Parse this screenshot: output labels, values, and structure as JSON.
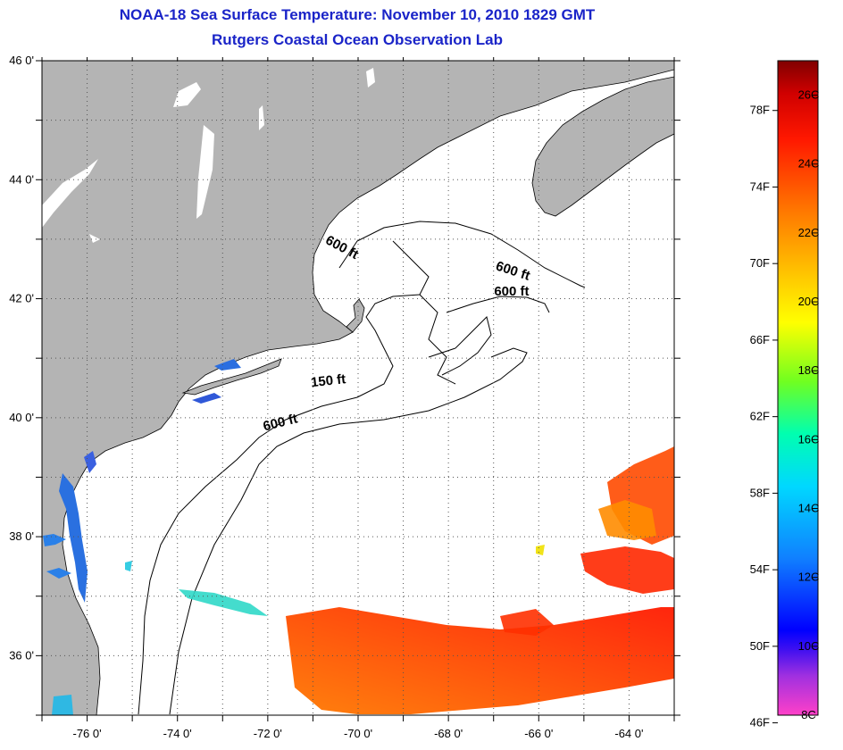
{
  "title": {
    "line1": "NOAA-18 Sea Surface Temperature:  November 10, 2010 1829 GMT",
    "line2": "Rutgers Coastal Ocean Observation Lab"
  },
  "map": {
    "lon_range": [
      -77,
      -63
    ],
    "lat_range": [
      35,
      46
    ],
    "lon_ticks": [
      {
        "value": -76,
        "label": "-76 0'"
      },
      {
        "value": -74,
        "label": "-74 0'"
      },
      {
        "value": -72,
        "label": "-72 0'"
      },
      {
        "value": -70,
        "label": "-70 0'"
      },
      {
        "value": -68,
        "label": "-68 0'"
      },
      {
        "value": -66,
        "label": "-66 0'"
      },
      {
        "value": -64,
        "label": "-64 0'"
      }
    ],
    "lat_ticks": [
      {
        "value": 46,
        "label": "46 0'"
      },
      {
        "value": 44,
        "label": "44 0'"
      },
      {
        "value": 42,
        "label": "42 0'"
      },
      {
        "value": 40,
        "label": "40 0'"
      },
      {
        "value": 38,
        "label": "38 0'"
      },
      {
        "value": 36,
        "label": "36 0'"
      }
    ],
    "contour_labels": [
      {
        "text": "600 ft",
        "lon": -70.4,
        "lat": 42.8,
        "rotate": 28
      },
      {
        "text": "600 ft",
        "lon": -66.6,
        "lat": 42.4,
        "rotate": 18
      },
      {
        "text": "600 ft",
        "lon": -66.6,
        "lat": 42.05,
        "rotate": 0
      },
      {
        "text": "150 ft",
        "lon": -70.65,
        "lat": 40.55,
        "rotate": -6
      },
      {
        "text": "600 ft",
        "lon": -71.7,
        "lat": 39.85,
        "rotate": -14
      }
    ],
    "colors": {
      "land": "#b4b4b4",
      "ocean": "#ffffff",
      "grid": "#555555"
    }
  },
  "colorbar": {
    "fahrenheit": [
      "78F",
      "74F",
      "70F",
      "66F",
      "62F",
      "58F",
      "54F",
      "50F",
      "46F"
    ],
    "celsius": [
      "26C",
      "24C",
      "22C",
      "20C",
      "18C",
      "16C",
      "14C",
      "12C",
      "10C",
      "8C"
    ],
    "range_c": [
      8,
      27
    ],
    "colors": [
      "#ff40c8",
      "#7a28d8",
      "#0000ff",
      "#0080ff",
      "#00e0ff",
      "#00ff80",
      "#80ff00",
      "#ffff00",
      "#ffb000",
      "#ff6000",
      "#ff0000",
      "#800000"
    ]
  }
}
